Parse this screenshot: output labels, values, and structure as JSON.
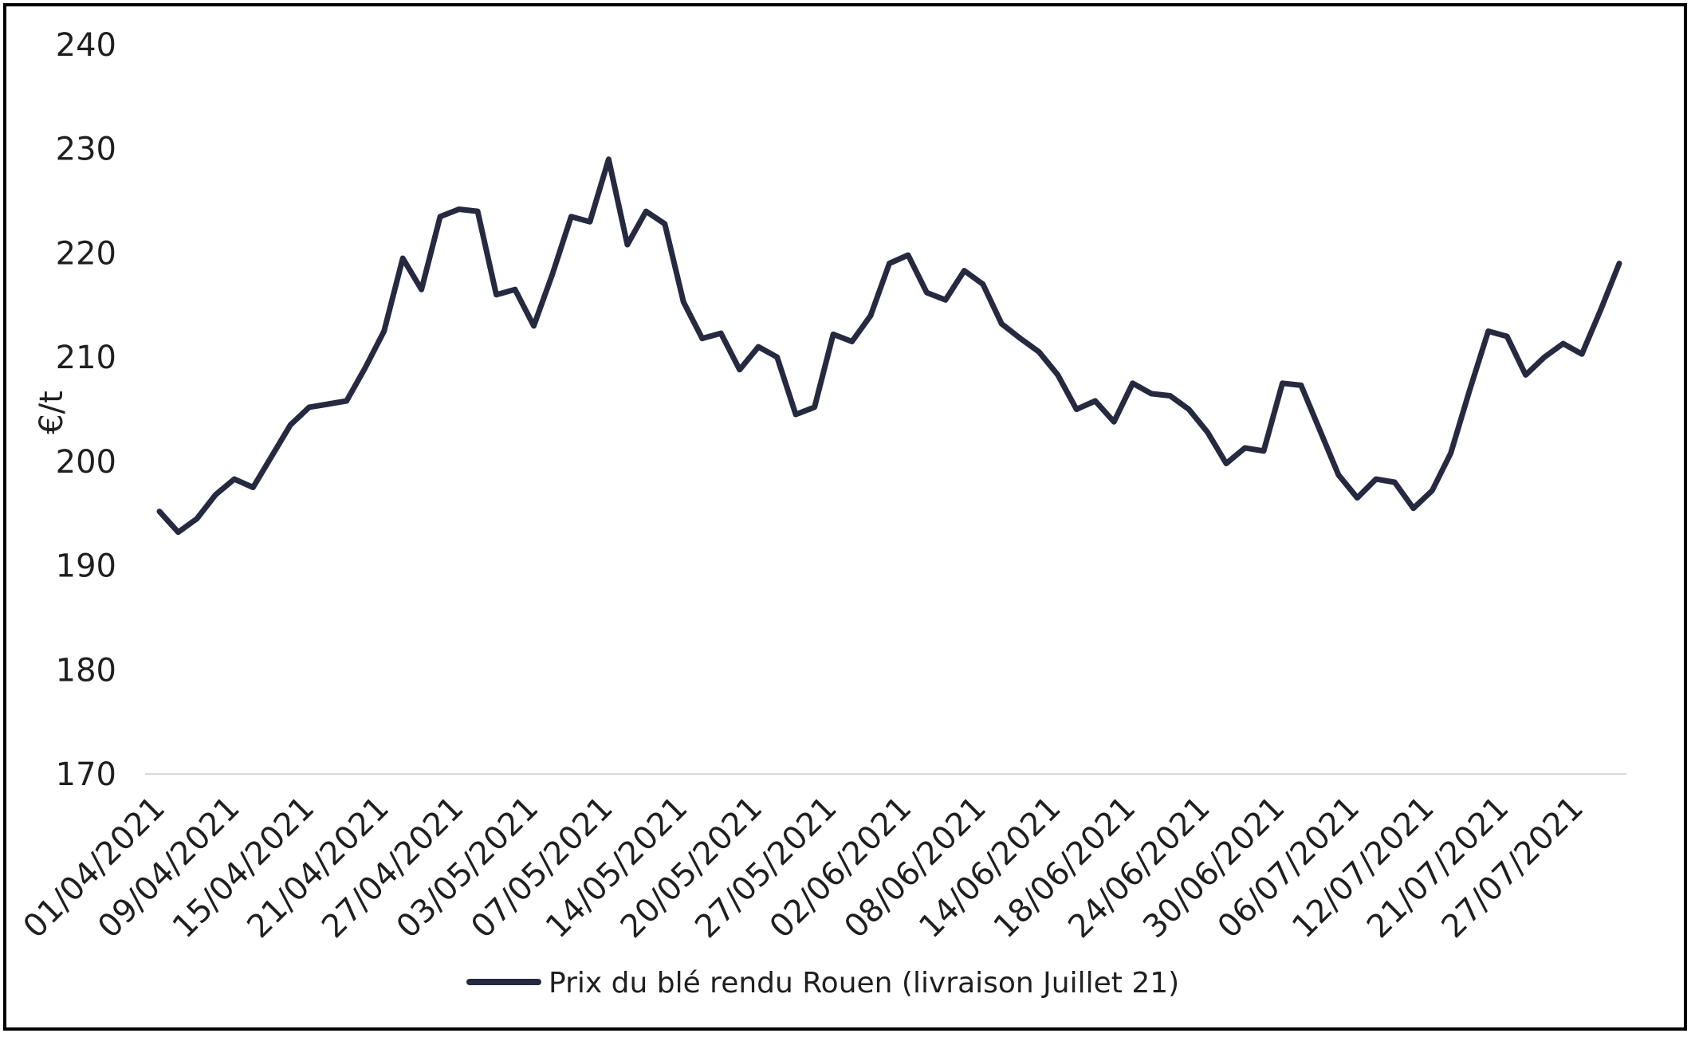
{
  "chart_data": {
    "type": "line",
    "title": "",
    "ylabel": "€/t",
    "xlabel": "",
    "ylim": [
      170,
      240
    ],
    "yticks": [
      170,
      180,
      190,
      200,
      210,
      220,
      230,
      240
    ],
    "grid": false,
    "legend_position": "bottom",
    "line_color": "#262a40",
    "x_tick_labels": [
      "01/04/2021",
      "09/04/2021",
      "15/04/2021",
      "21/04/2021",
      "27/04/2021",
      "03/05/2021",
      "07/05/2021",
      "14/05/2021",
      "20/05/2021",
      "27/05/2021",
      "02/06/2021",
      "08/06/2021",
      "14/06/2021",
      "18/06/2021",
      "24/06/2021",
      "30/06/2021",
      "06/07/2021",
      "12/07/2021",
      "21/07/2021",
      "27/07/2021"
    ],
    "series": [
      {
        "name": "Prix du blé rendu Rouen (livraison Juillet 21)",
        "values": [
          195.2,
          193.2,
          194.5,
          196.8,
          198.3,
          197.5,
          200.5,
          203.5,
          205.2,
          205.5,
          205.8,
          209.0,
          212.5,
          219.5,
          216.5,
          223.5,
          224.2,
          224.0,
          216.0,
          216.5,
          213.0,
          218.0,
          223.5,
          223.0,
          229.0,
          220.8,
          224.0,
          222.8,
          215.3,
          211.8,
          212.3,
          208.8,
          211.0,
          210.0,
          204.5,
          205.2,
          212.2,
          211.5,
          214.0,
          219.0,
          219.8,
          216.2,
          215.5,
          218.3,
          217.0,
          213.2,
          211.8,
          210.5,
          208.3,
          205.0,
          205.8,
          203.8,
          207.5,
          206.5,
          206.3,
          205.0,
          202.8,
          199.8,
          201.3,
          201.0,
          207.5,
          207.3,
          203.0,
          198.7,
          196.5,
          198.3,
          198.0,
          195.5,
          197.2,
          200.8,
          206.8,
          212.5,
          212.0,
          208.3,
          210.0,
          211.3,
          210.3,
          214.5,
          219.0
        ]
      }
    ]
  }
}
